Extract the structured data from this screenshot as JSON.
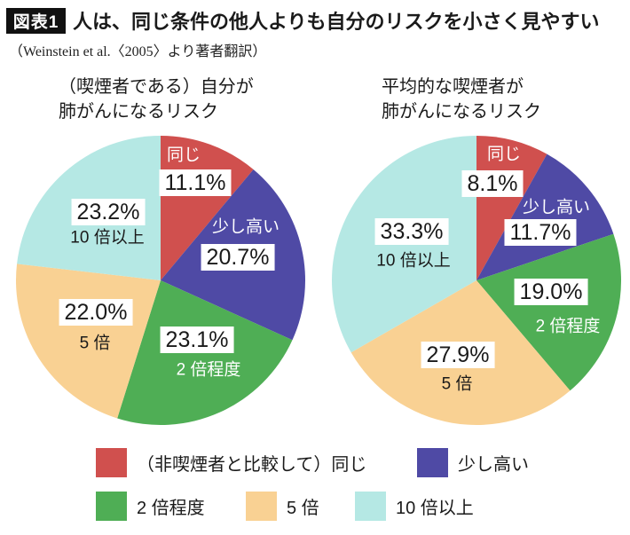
{
  "header": {
    "badge": "図表1",
    "title": "人は、同じ条件の他人よりも自分のリスクを小さく見やすい",
    "subtitle": "（Weinstein et al.〈2005〉より著者翻訳）"
  },
  "palette": [
    "#d0504e",
    "#4f4aa5",
    "#4fae55",
    "#f9d193",
    "#b5e8e4"
  ],
  "text_color": "#1a1a1a",
  "badge_bg": "#111111",
  "chart_data": [
    {
      "type": "pie",
      "title_lines": [
        "（喫煙者である）自分が",
        "肺がんになるリスク"
      ],
      "categories": [
        "同じ",
        "少し高い",
        "2 倍程度",
        "5 倍",
        "10 倍以上"
      ],
      "values": [
        11.1,
        20.7,
        23.1,
        22.0,
        23.2
      ],
      "value_labels": [
        "11.1%",
        "20.7%",
        "23.1%",
        "22.0%",
        "23.2%"
      ],
      "start_angle": "12-oclock",
      "direction": "clockwise",
      "legend_position": "bottom-shared"
    },
    {
      "type": "pie",
      "title_lines": [
        "平均的な喫煙者が",
        "肺がんになるリスク"
      ],
      "categories": [
        "同じ",
        "少し高い",
        "2 倍程度",
        "5 倍",
        "10 倍以上"
      ],
      "values": [
        8.1,
        11.7,
        19.0,
        27.9,
        33.3
      ],
      "value_labels": [
        "8.1%",
        "11.7%",
        "19.0%",
        "27.9%",
        "33.3%"
      ],
      "start_angle": "12-oclock",
      "direction": "clockwise",
      "legend_position": "bottom-shared"
    }
  ],
  "legend": {
    "items": [
      {
        "label": "（非喫煙者と比較して）同じ",
        "color": "#d0504e"
      },
      {
        "label": "少し高い",
        "color": "#4f4aa5"
      },
      {
        "label": "2 倍程度",
        "color": "#4fae55"
      },
      {
        "label": "5 倍",
        "color": "#f9d193"
      },
      {
        "label": "10 倍以上",
        "color": "#b5e8e4"
      }
    ]
  }
}
